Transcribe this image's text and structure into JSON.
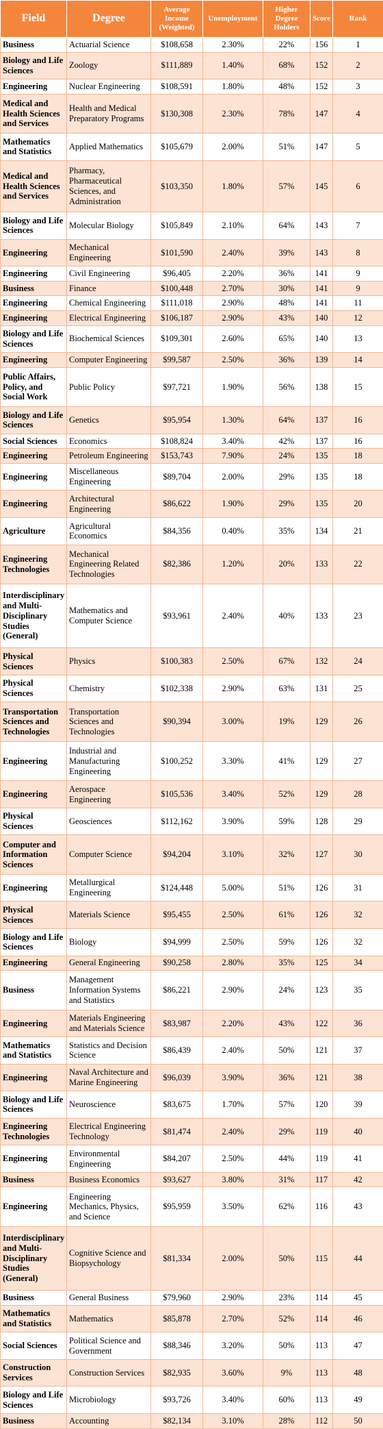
{
  "table": {
    "columns": [
      "Field",
      "Degree",
      "Average Income (Weighted)",
      "Unemployment",
      "Higher Degree Holders",
      "Score",
      "Rank"
    ],
    "rows": [
      [
        "Business",
        "Actuarial Science",
        "$108,658",
        "2.30%",
        "22%",
        "156",
        "1"
      ],
      [
        "Biology and Life Sciences",
        "Zoology",
        "$111,889",
        "1.40%",
        "68%",
        "152",
        "2"
      ],
      [
        "Engineering",
        "Nuclear Engineering",
        "$108,591",
        "1.80%",
        "48%",
        "152",
        "3"
      ],
      [
        "Medical and Health Sciences and Services",
        "Health and Medical Preparatory Programs",
        "$130,308",
        "2.30%",
        "78%",
        "147",
        "4"
      ],
      [
        "Mathematics and Statistics",
        "Applied Mathematics",
        "$105,679",
        "2.00%",
        "51%",
        "147",
        "5"
      ],
      [
        "Medical and Health Sciences and Services",
        "Pharmacy, Pharmaceutical Sciences, and Administration",
        "$103,350",
        "1.80%",
        "57%",
        "145",
        "6"
      ],
      [
        "Biology and Life Sciences",
        "Molecular Biology",
        "$105,849",
        "2.10%",
        "64%",
        "143",
        "7"
      ],
      [
        "Engineering",
        "Mechanical Engineering",
        "$101,590",
        "2.40%",
        "39%",
        "143",
        "8"
      ],
      [
        "Engineering",
        "Civil Engineering",
        "$96,405",
        "2.20%",
        "36%",
        "141",
        "9"
      ],
      [
        "Business",
        "Finance",
        "$100,448",
        "2.70%",
        "30%",
        "141",
        "9"
      ],
      [
        "Engineering",
        "Chemical Engineering",
        "$111,018",
        "2.90%",
        "48%",
        "141",
        "11"
      ],
      [
        "Engineering",
        "Electrical Engineering",
        "$106,187",
        "2.90%",
        "43%",
        "140",
        "12"
      ],
      [
        "Biology and Life Sciences",
        "Biochemical Sciences",
        "$109,301",
        "2.60%",
        "65%",
        "140",
        "13"
      ],
      [
        "Engineering",
        "Computer Engineering",
        "$99,587",
        "2.50%",
        "36%",
        "139",
        "14"
      ],
      [
        "Public Affairs, Policy, and Social Work",
        "Public Policy",
        "$97,721",
        "1.90%",
        "56%",
        "138",
        "15"
      ],
      [
        "Biology and Life Sciences",
        "Genetics",
        "$95,954",
        "1.30%",
        "64%",
        "137",
        "16"
      ],
      [
        "Social Sciences",
        "Economics",
        "$108,824",
        "3.40%",
        "42%",
        "137",
        "16"
      ],
      [
        "Engineering",
        "Petroleum Engineering",
        "$153,743",
        "7.90%",
        "24%",
        "135",
        "18"
      ],
      [
        "Engineering",
        "Miscellaneous Engineering",
        "$89,704",
        "2.00%",
        "29%",
        "135",
        "18"
      ],
      [
        "Engineering",
        "Architectural Engineering",
        "$86,622",
        "1.90%",
        "29%",
        "135",
        "20"
      ],
      [
        "Agriculture",
        "Agricultural Economics",
        "$84,356",
        "0.40%",
        "35%",
        "134",
        "21"
      ],
      [
        "Engineering Technologies",
        "Mechanical Engineering Related Technologies",
        "$82,386",
        "1.20%",
        "20%",
        "133",
        "22"
      ],
      [
        "Interdisciplinary and Multi-Disciplinary Studies (General)",
        "Mathematics and Computer Science",
        "$93,961",
        "2.40%",
        "40%",
        "133",
        "23"
      ],
      [
        "Physical Sciences",
        "Physics",
        "$100,383",
        "2.50%",
        "67%",
        "132",
        "24"
      ],
      [
        "Physical Sciences",
        "Chemistry",
        "$102,338",
        "2.90%",
        "63%",
        "131",
        "25"
      ],
      [
        "Transportation Sciences and Technologies",
        "Transportation Sciences and Technologies",
        "$90,394",
        "3.00%",
        "19%",
        "129",
        "26"
      ],
      [
        "Engineering",
        "Industrial and Manufacturing Engineering",
        "$100,252",
        "3.30%",
        "41%",
        "129",
        "27"
      ],
      [
        "Engineering",
        "Aerospace Engineering",
        "$105,536",
        "3.40%",
        "52%",
        "129",
        "28"
      ],
      [
        "Physical Sciences",
        "Geosciences",
        "$112,162",
        "3.90%",
        "59%",
        "128",
        "29"
      ],
      [
        "Computer and Information Sciences",
        "Computer Science",
        "$94,204",
        "3.10%",
        "32%",
        "127",
        "30"
      ],
      [
        "Engineering",
        "Metallurgical Engineering",
        "$124,448",
        "5.00%",
        "51%",
        "126",
        "31"
      ],
      [
        "Physical Sciences",
        "Materials Science",
        "$95,455",
        "2.50%",
        "61%",
        "126",
        "32"
      ],
      [
        "Biology and Life Sciences",
        "Biology",
        "$94,999",
        "2.50%",
        "59%",
        "126",
        "32"
      ],
      [
        "Engineering",
        "General Engineering",
        "$90,258",
        "2.80%",
        "35%",
        "125",
        "34"
      ],
      [
        "Business",
        "Management Information Systems and Statistics",
        "$86,221",
        "2.90%",
        "24%",
        "123",
        "35"
      ],
      [
        "Engineering",
        "Materials Engineering and Materials Science",
        "$83,987",
        "2.20%",
        "43%",
        "122",
        "36"
      ],
      [
        "Mathematics and Statistics",
        "Statistics and Decision Science",
        "$86,439",
        "2.40%",
        "50%",
        "121",
        "37"
      ],
      [
        "Engineering",
        "Naval Architecture and Marine Engineering",
        "$96,039",
        "3.90%",
        "36%",
        "121",
        "38"
      ],
      [
        "Biology and Life Sciences",
        "Neuroscience",
        "$83,675",
        "1.70%",
        "57%",
        "120",
        "39"
      ],
      [
        "Engineering Technologies",
        "Electrical Engineering Technology",
        "$81,474",
        "2.40%",
        "29%",
        "119",
        "40"
      ],
      [
        "Engineering",
        "Environmental Engineering",
        "$84,207",
        "2.50%",
        "44%",
        "119",
        "41"
      ],
      [
        "Business",
        "Business Economics",
        "$93,627",
        "3.80%",
        "31%",
        "117",
        "42"
      ],
      [
        "Engineering",
        "Engineering Mechanics, Physics, and Science",
        "$95,959",
        "3.50%",
        "62%",
        "116",
        "43"
      ],
      [
        "Interdisciplinary and Multi-Disciplinary Studies (General)",
        "Cognitive Science and Biopsychology",
        "$81,334",
        "2.00%",
        "50%",
        "115",
        "44"
      ],
      [
        "Business",
        "General Business",
        "$79,960",
        "2.90%",
        "23%",
        "114",
        "45"
      ],
      [
        "Mathematics and Statistics",
        "Mathematics",
        "$85,878",
        "2.70%",
        "52%",
        "114",
        "46"
      ],
      [
        "Social Sciences",
        "Political Science and Government",
        "$88,346",
        "3.20%",
        "50%",
        "113",
        "47"
      ],
      [
        "Construction Services",
        "Construction Services",
        "$82,935",
        "3.60%",
        "9%",
        "113",
        "48"
      ],
      [
        "Biology and Life Sciences",
        "Microbiology",
        "$93,726",
        "3.40%",
        "60%",
        "113",
        "49"
      ],
      [
        "Business",
        "Accounting",
        "$82,134",
        "3.10%",
        "28%",
        "112",
        "50"
      ]
    ]
  }
}
